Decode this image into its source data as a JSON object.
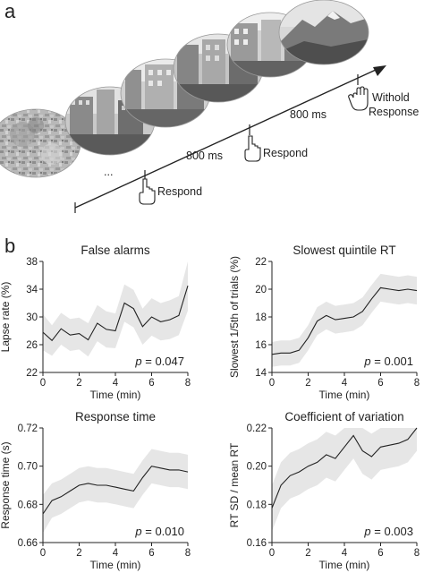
{
  "panel_a": {
    "letter": "a",
    "labels": {
      "respond_1": "Respond",
      "respond_2": "Respond",
      "withhold_line1": "Withold",
      "withhold_line2": "Response",
      "isi_1": "800 ms",
      "isi_2": "800 ms",
      "ellipsis": "..."
    },
    "icons": [
      "hand-pointing-icon",
      "hand-pointing-icon",
      "open-hand-icon"
    ],
    "scenes": [
      "noise-mask",
      "city-street",
      "city-street",
      "city-street",
      "city-street",
      "mountain"
    ]
  },
  "panel_b": {
    "letter": "b"
  },
  "chart_data": [
    {
      "type": "line",
      "title": "False alarms",
      "xlabel": "Time (min)",
      "ylabel": "Lapse rate (%)",
      "xlim": [
        0,
        8
      ],
      "ylim": [
        22,
        38
      ],
      "xticks": [
        0,
        2,
        4,
        6,
        8
      ],
      "yticks": [
        22,
        26,
        30,
        34,
        38
      ],
      "annotation": "p = 0.047",
      "band": "shaded SEM",
      "x": [
        0,
        0.5,
        1,
        1.5,
        2,
        2.5,
        3,
        3.5,
        4,
        4.5,
        5,
        5.5,
        6,
        6.5,
        7,
        7.5,
        8
      ],
      "y": [
        27.8,
        26.6,
        28.3,
        27.4,
        27.6,
        26.7,
        29.1,
        28.2,
        28.0,
        32.0,
        31.2,
        28.6,
        30.0,
        29.3,
        29.6,
        30.2,
        34.5
      ],
      "band_half_width": [
        2.6,
        2.2,
        2.3,
        2.3,
        2.3,
        2.4,
        2.6,
        2.6,
        2.5,
        2.7,
        2.7,
        2.6,
        2.7,
        2.7,
        2.8,
        2.8,
        3.6
      ]
    },
    {
      "type": "line",
      "title": "Slowest quintile RT",
      "xlabel": "Time (min)",
      "ylabel": "Slowest 1/5th of trials (%)",
      "xlim": [
        0,
        8
      ],
      "ylim": [
        14,
        22
      ],
      "xticks": [
        0,
        2,
        4,
        6,
        8
      ],
      "yticks": [
        14,
        16,
        18,
        20,
        22
      ],
      "annotation": "p = 0.001",
      "band": "shaded SEM",
      "x": [
        0,
        0.5,
        1,
        1.5,
        2,
        2.5,
        3,
        3.5,
        4,
        4.5,
        5,
        5.5,
        6,
        6.5,
        7,
        7.5,
        8
      ],
      "y": [
        15.3,
        15.4,
        15.4,
        15.6,
        16.5,
        17.7,
        18.1,
        17.8,
        17.9,
        18.0,
        18.4,
        19.3,
        20.1,
        20.0,
        19.9,
        20.0,
        19.9
      ],
      "band_half_width": [
        0.9,
        0.9,
        0.9,
        0.9,
        0.9,
        1.0,
        1.0,
        1.0,
        1.0,
        1.0,
        1.0,
        1.0,
        1.0,
        1.0,
        1.0,
        1.0,
        1.0
      ]
    },
    {
      "type": "line",
      "title": "Response time",
      "xlabel": "Time (min)",
      "ylabel": "Response time (s)",
      "xlim": [
        0,
        8
      ],
      "ylim": [
        0.66,
        0.72
      ],
      "xticks": [
        0,
        2,
        4,
        6,
        8
      ],
      "yticks": [
        0.66,
        0.68,
        0.7,
        0.72
      ],
      "annotation": "p = 0.010",
      "band": "shaded SEM",
      "x": [
        0,
        0.5,
        1,
        1.5,
        2,
        2.5,
        3,
        3.5,
        4,
        4.5,
        5,
        5.5,
        6,
        6.5,
        7,
        7.5,
        8
      ],
      "y": [
        0.675,
        0.682,
        0.684,
        0.687,
        0.69,
        0.691,
        0.69,
        0.69,
        0.689,
        0.688,
        0.687,
        0.694,
        0.7,
        0.699,
        0.698,
        0.698,
        0.697
      ],
      "band_half_width": [
        0.01,
        0.009,
        0.009,
        0.009,
        0.009,
        0.009,
        0.009,
        0.009,
        0.009,
        0.009,
        0.009,
        0.009,
        0.009,
        0.009,
        0.009,
        0.009,
        0.009
      ]
    },
    {
      "type": "line",
      "title": "Coefficient of variation",
      "xlabel": "Time (min)",
      "ylabel": "RT SD / mean RT",
      "xlim": [
        0,
        8
      ],
      "ylim": [
        0.16,
        0.22
      ],
      "xticks": [
        0,
        2,
        4,
        6,
        8
      ],
      "yticks": [
        0.16,
        0.18,
        0.2,
        0.22
      ],
      "annotation": "p = 0.003",
      "band": "shaded SEM",
      "x": [
        0,
        0.5,
        1,
        1.5,
        2,
        2.5,
        3,
        3.5,
        4,
        4.5,
        5,
        5.5,
        6,
        6.5,
        7,
        7.5,
        8
      ],
      "y": [
        0.178,
        0.19,
        0.195,
        0.197,
        0.2,
        0.202,
        0.206,
        0.204,
        0.21,
        0.216,
        0.208,
        0.205,
        0.21,
        0.211,
        0.212,
        0.214,
        0.22
      ],
      "band_half_width": [
        0.012,
        0.012,
        0.012,
        0.012,
        0.012,
        0.012,
        0.012,
        0.012,
        0.012,
        0.012,
        0.012,
        0.012,
        0.012,
        0.012,
        0.012,
        0.012,
        0.012
      ]
    }
  ]
}
